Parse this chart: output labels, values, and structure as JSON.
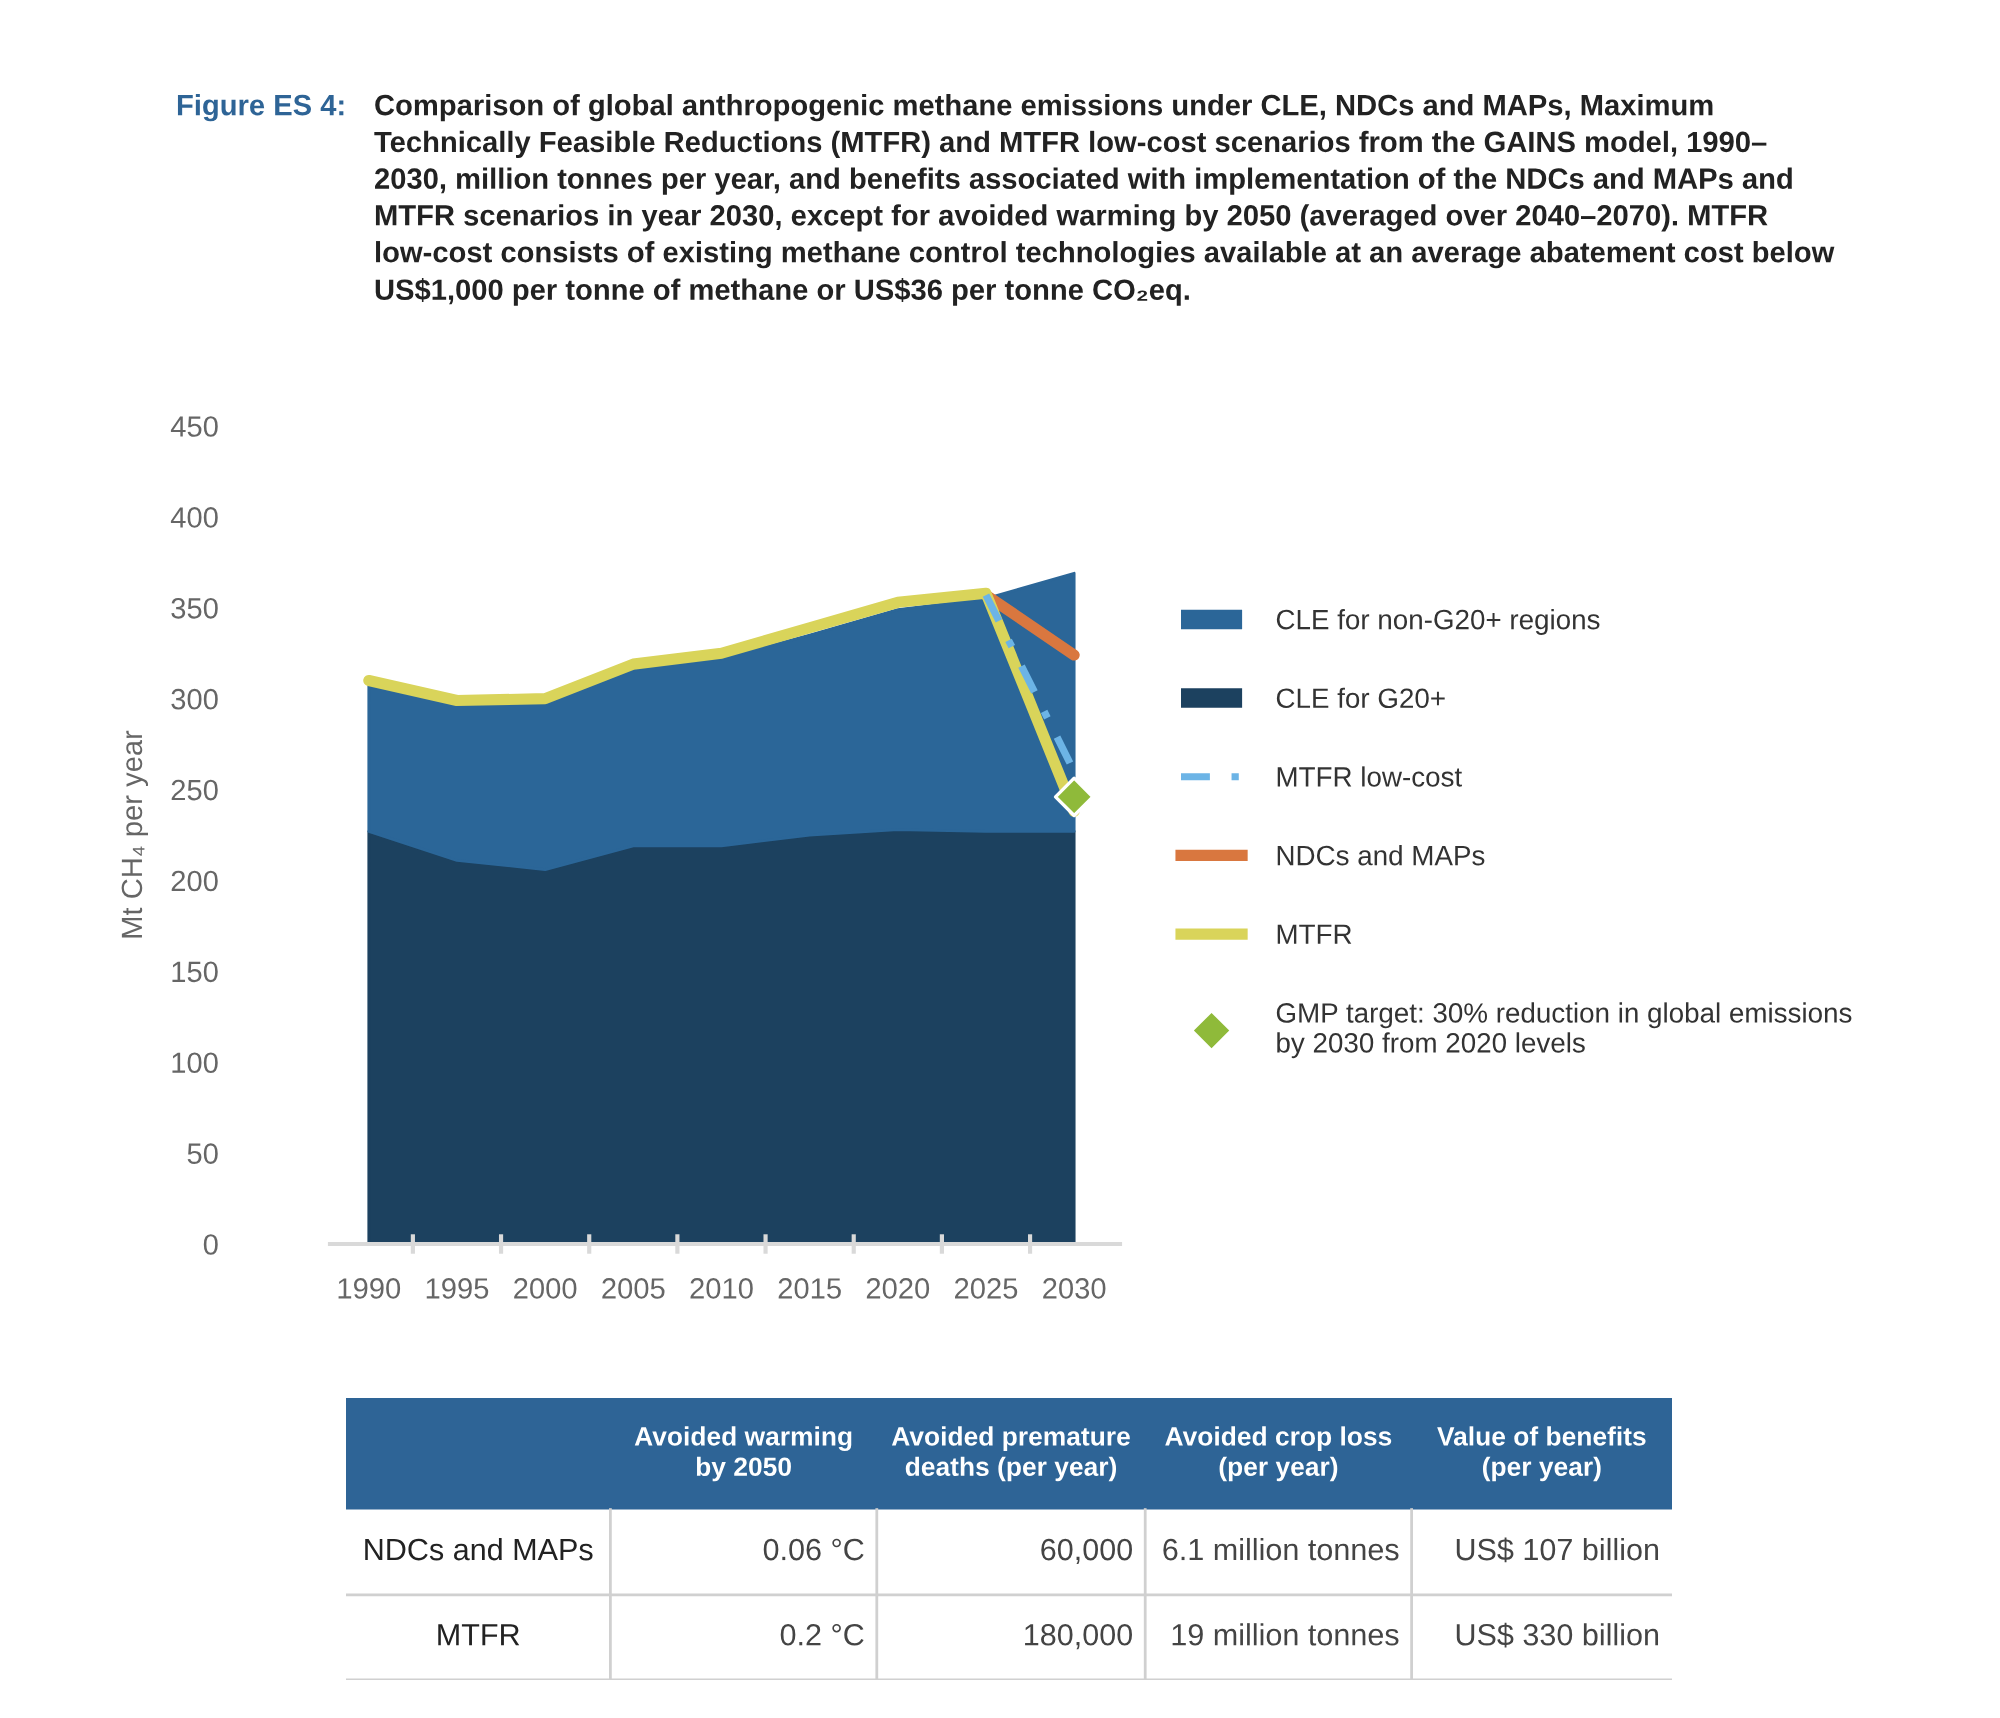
{
  "chart_data": [
    {
      "type": "area",
      "title": "Figure ES 4:",
      "subtitle": "Comparison of global anthropogenic methane emissions under CLE, NDCs and MAPs, Maximum\nTechnically Feasible Reductions (MTFR) and MTFR low-cost scenarios from the GAINS model, 1990–\n2030, million tonnes per year, and benefits associated with implementation of the NDCs and MAPs and\nMTFR scenarios in year 2030, except for avoided warming by 2050 (averaged over 2040–2070). MTFR\nlow-cost consists of existing methane control technologies available at an average abatement cost below\nUS$1,000 per tonne of methane or US$36 per tonne CO₂eq.",
      "ylabel": "Mt CH₄ per year",
      "x": [
        1990,
        1995,
        2000,
        2005,
        2010,
        2015,
        2020,
        2025,
        2030
      ],
      "xlim": [
        1987.8,
        2032.6
      ],
      "xticks": [
        1990,
        {
          "value": 1992.5,
          "label": null
        },
        1995,
        {
          "value": 1997.5,
          "label": null
        },
        2000,
        {
          "value": 2002.5,
          "label": null
        },
        2005,
        {
          "value": 2007.5,
          "label": null
        },
        2010,
        {
          "value": 2012.5,
          "label": null
        },
        2015,
        {
          "value": 2017.5,
          "label": null
        },
        2020,
        {
          "value": 2022.5,
          "label": null
        },
        2025,
        {
          "value": 2027.5,
          "label": null
        },
        2030
      ],
      "ylim": [
        0,
        450
      ],
      "yticks": [
        0,
        50,
        100,
        150,
        200,
        250,
        300,
        350,
        400,
        450
      ],
      "stacked": true,
      "grid": false,
      "legend": "right",
      "series": [
        {
          "name": "CLE for G20+",
          "type": "area",
          "color": "#1c415f",
          "values": [
            227,
            211,
            206,
            219,
            219,
            225,
            228,
            227,
            227
          ]
        },
        {
          "name": "CLE for non-G20+ regions",
          "type": "area",
          "color": "#2b6698",
          "values": [
            80,
            87,
            92,
            97,
            103,
            110,
            121,
            128,
            142
          ]
        },
        {
          "name": "MTFR low-cost",
          "type": "line",
          "line_style": "dashed",
          "color": "#6cb4e6",
          "values": [
            null,
            null,
            null,
            null,
            null,
            null,
            null,
            357,
            260
          ]
        },
        {
          "name": "NDCs and MAPs",
          "type": "line",
          "line_style": "solid",
          "color": "#d9773f",
          "values": [
            null,
            null,
            null,
            null,
            null,
            null,
            null,
            357,
            324
          ]
        },
        {
          "name": "MTFR",
          "type": "line",
          "line_style": "solid",
          "color": "#d9d45a",
          "values": [
            310,
            299,
            300,
            319,
            325,
            339,
            353,
            358,
            238
          ]
        },
        {
          "name": "GMP target: 30% reduction in global emissions\nby 2030 from 2020 levels",
          "type": "scatter",
          "marker": "diamond",
          "color": "#8fba3a",
          "values": [
            null,
            null,
            null,
            null,
            null,
            null,
            null,
            null,
            246
          ]
        }
      ]
    },
    {
      "type": "other",
      "color": "#2e6496",
      "categories": [
        null,
        "Avoided warming\nby 2050",
        "Avoided premature\ndeaths (per year)",
        "Avoided crop loss\n(per year)",
        "Value of benefits\n(per year)"
      ],
      "y_categories": [
        "NDCs and MAPs",
        "MTFR"
      ],
      "cell_labels": [
        [
          "0.06 °C",
          "60,000",
          "6.1 million tonnes",
          "US$ 107 billion"
        ],
        [
          "0.2 °C",
          "180,000",
          "19 million tonnes",
          "US$ 330 billion"
        ]
      ]
    }
  ]
}
